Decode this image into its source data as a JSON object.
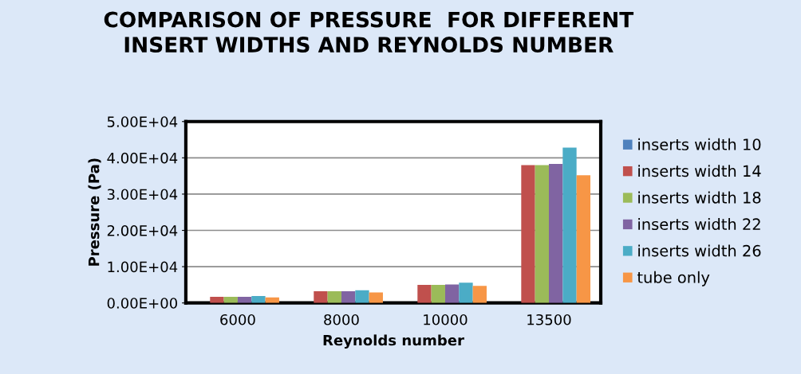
{
  "chart_data": {
    "type": "bar",
    "title": "COMPARISON OF PRESSURE  FOR DIFFERENT\nINSERT WIDTHS AND REYNOLDS NUMBER",
    "xlabel": "Reynolds number",
    "ylabel": "Pressure (Pa)",
    "categories": [
      "6000",
      "8000",
      "10000",
      "13500"
    ],
    "series": [
      {
        "name": "inserts width 10",
        "color": "#4f81bd",
        "values": [
          0,
          0,
          0,
          0
        ]
      },
      {
        "name": "inserts width 14",
        "color": "#c0504d",
        "values": [
          1700,
          3200,
          5000,
          38000
        ]
      },
      {
        "name": "inserts width 18",
        "color": "#9bbb59",
        "values": [
          1700,
          3200,
          5000,
          38000
        ]
      },
      {
        "name": "inserts width 22",
        "color": "#8064a2",
        "values": [
          1700,
          3200,
          5100,
          38300
        ]
      },
      {
        "name": "inserts width 26",
        "color": "#4bacc6",
        "values": [
          1900,
          3500,
          5600,
          42800
        ]
      },
      {
        "name": "tube only",
        "color": "#f79646",
        "values": [
          1500,
          2900,
          4700,
          35200
        ]
      }
    ],
    "ylim": [
      0,
      50000
    ],
    "yticks": [
      {
        "value": 0,
        "label": "0.00E+00"
      },
      {
        "value": 10000,
        "label": "1.00E+04"
      },
      {
        "value": 20000,
        "label": "2.00E+04"
      },
      {
        "value": 30000,
        "label": "3.00E+04"
      },
      {
        "value": 40000,
        "label": "4.00E+04"
      },
      {
        "value": 50000,
        "label": "5.00E+04"
      }
    ],
    "grid": "y",
    "legend": "right"
  }
}
